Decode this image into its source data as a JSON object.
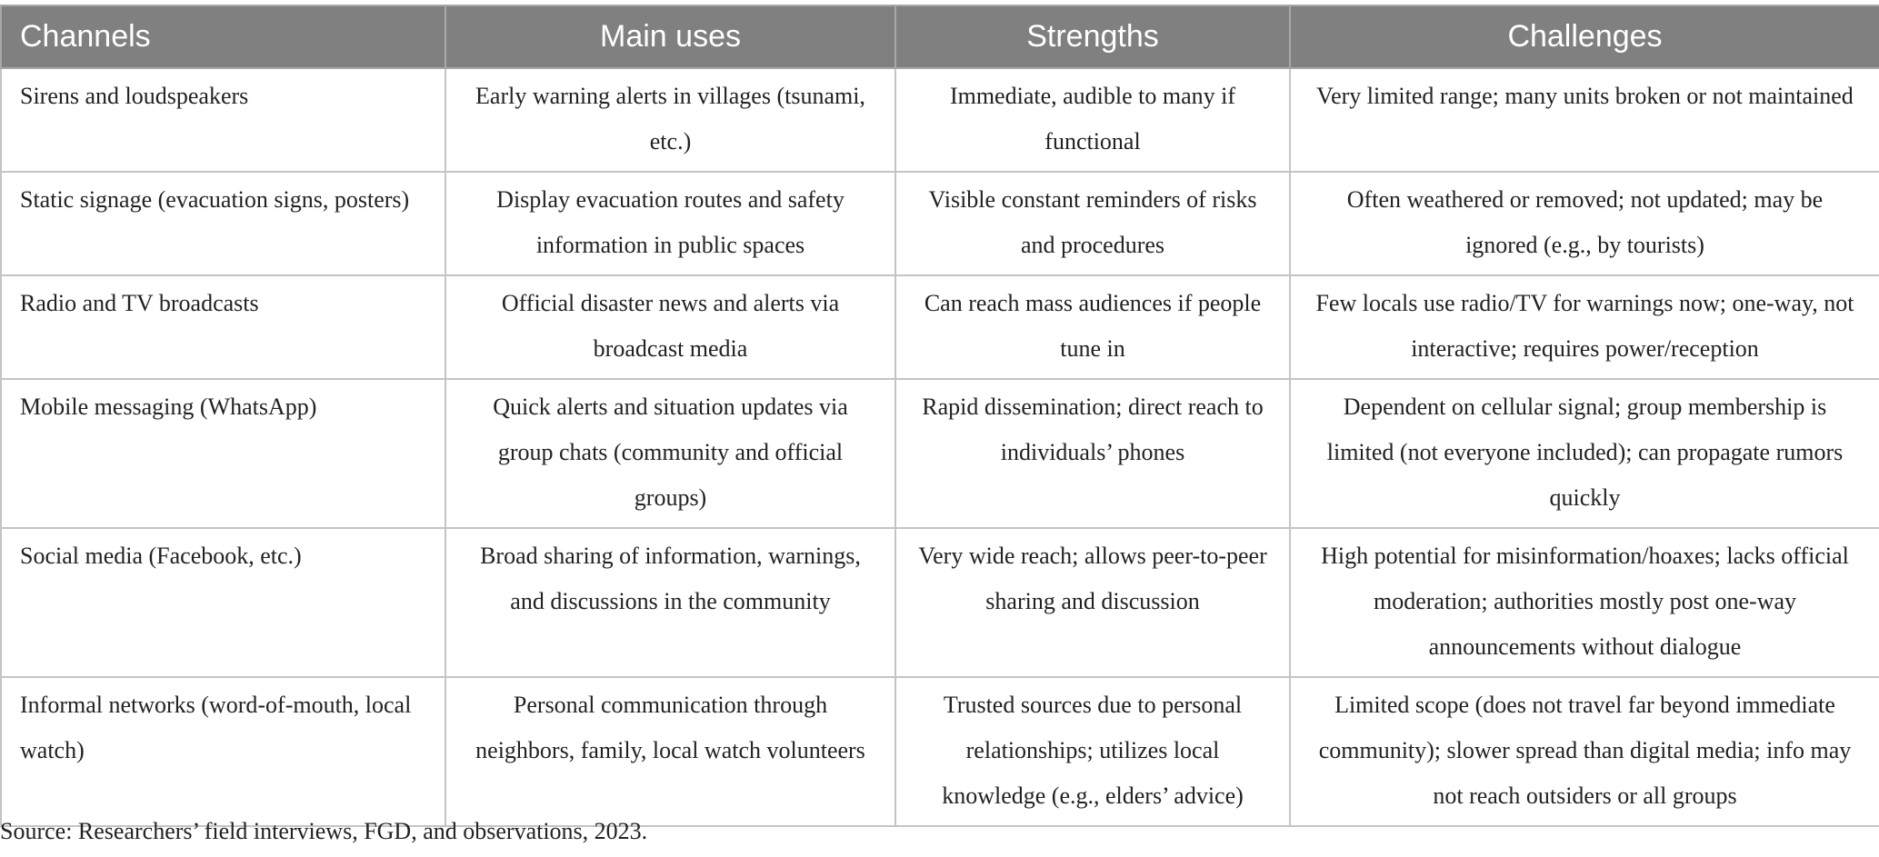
{
  "table": {
    "headers": [
      "Channels",
      "Main uses",
      "Strengths",
      "Challenges"
    ],
    "rows": [
      [
        "Sirens and loudspeakers",
        "Early warning alerts in villages (tsunami, etc.)",
        "Immediate, audible to many if functional",
        "Very limited range; many units broken or not maintained"
      ],
      [
        "Static signage (evacuation signs, posters)",
        "Display evacuation routes and safety information in public spaces",
        "Visible constant reminders of risks and procedures",
        "Often weathered or removed; not updated; may be ignored (e.g., by tourists)"
      ],
      [
        "Radio and TV broadcasts",
        "Official disaster news and alerts via broadcast media",
        "Can reach mass audiences if people tune in",
        "Few locals use radio/TV for warnings now; one-way, not interactive; requires power/reception"
      ],
      [
        "Mobile messaging (WhatsApp)",
        "Quick alerts and situation updates via group chats (community and official groups)",
        "Rapid dissemination; direct reach to individuals’ phones",
        "Dependent on cellular signal; group membership is limited (not everyone included); can propagate rumors quickly"
      ],
      [
        "Social media (Facebook, etc.)",
        "Broad sharing of information, warnings, and discussions in the community",
        "Very wide reach; allows peer-to-peer sharing and discussion",
        "High potential for misinformation/hoaxes; lacks official moderation; authorities mostly post one-way announcements without dialogue"
      ],
      [
        "Informal networks (word-of-mouth, local watch)",
        "Personal communication through neighbors, family, local watch volunteers",
        "Trusted sources due to personal relationships; utilizes local knowledge (e.g., elders’ advice)",
        "Limited scope (does not travel far beyond immediate community); slower spread than digital media; info may not reach outsiders or all groups"
      ]
    ]
  },
  "source": "Source: Researchers’ field interviews, FGD, and observations, 2023.",
  "colors": {
    "header_bg": "#808080",
    "header_text": "#ffffff",
    "border": "#c4c4c4"
  }
}
